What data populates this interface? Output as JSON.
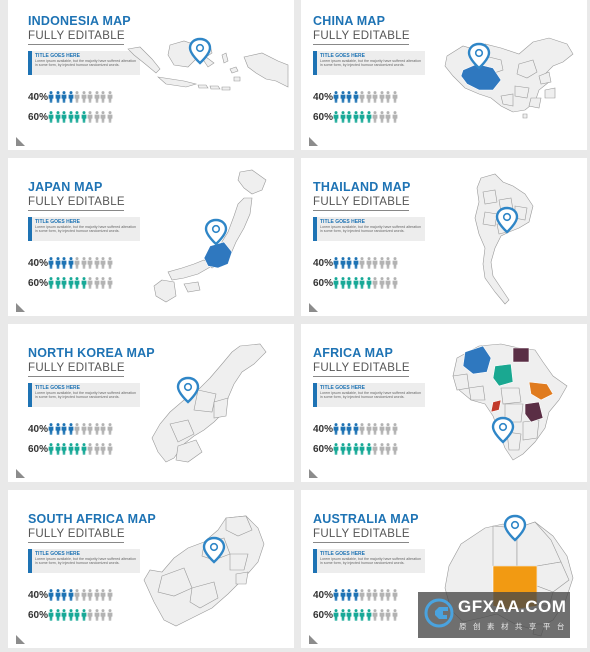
{
  "colors": {
    "title_blue": "#1e73b4",
    "person_blue": "#1e73b4",
    "person_teal": "#18a997",
    "person_grey": "#b3b3b3",
    "map_grey": "#efefef",
    "map_highlight_blue": "#2f78bf",
    "pin_blue": "#2f86c7"
  },
  "slides": [
    {
      "title": "INDONESIA MAP",
      "subtitle": "FULLY EDITABLE",
      "box_title": "TITLE GOES HERE",
      "box_text": "Lorem ipsum available, but the majority have suffered alteration in some form, by injected humour randomized words.",
      "stats": [
        {
          "label": "40%",
          "filled": 4,
          "total": 10,
          "color": "blue"
        },
        {
          "label": "60%",
          "filled": 6,
          "total": 10,
          "color": "teal"
        }
      ],
      "map_icon": "indonesia-map"
    },
    {
      "title": "CHINA MAP",
      "subtitle": "FULLY EDITABLE",
      "box_title": "TITLE GOES HERE",
      "box_text": "Lorem ipsum available, but the majority have suffered alteration in some form, by injected humour randomized words.",
      "stats": [
        {
          "label": "40%",
          "filled": 4,
          "total": 10,
          "color": "blue"
        },
        {
          "label": "60%",
          "filled": 6,
          "total": 10,
          "color": "teal"
        }
      ],
      "map_icon": "china-map"
    },
    {
      "title": "JAPAN MAP",
      "subtitle": "FULLY EDITABLE",
      "box_title": "TITLE GOES HERE",
      "box_text": "Lorem ipsum available, but the majority have suffered alteration in some form, by injected humour randomized words.",
      "stats": [
        {
          "label": "40%",
          "filled": 4,
          "total": 10,
          "color": "blue"
        },
        {
          "label": "60%",
          "filled": 6,
          "total": 10,
          "color": "teal"
        }
      ],
      "map_icon": "japan-map"
    },
    {
      "title": "THAILAND MAP",
      "subtitle": "FULLY EDITABLE",
      "box_title": "TITLE GOES HERE",
      "box_text": "Lorem ipsum available, but the majority have suffered alteration in some form, by injected humour randomized words.",
      "stats": [
        {
          "label": "40%",
          "filled": 4,
          "total": 10,
          "color": "blue"
        },
        {
          "label": "60%",
          "filled": 6,
          "total": 10,
          "color": "teal"
        }
      ],
      "map_icon": "thailand-map"
    },
    {
      "title": "NORTH KOREA MAP",
      "subtitle": "FULLY EDITABLE",
      "box_title": "TITLE GOES HERE",
      "box_text": "Lorem ipsum available, but the majority have suffered alteration in some form, by injected humour randomized words.",
      "stats": [
        {
          "label": "40%",
          "filled": 4,
          "total": 10,
          "color": "blue"
        },
        {
          "label": "60%",
          "filled": 6,
          "total": 10,
          "color": "teal"
        }
      ],
      "map_icon": "north-korea-map"
    },
    {
      "title": "AFRICA MAP",
      "subtitle": "FULLY EDITABLE",
      "box_title": "TITLE GOES HERE",
      "box_text": "Lorem ipsum available, but the majority have suffered alteration in some form, by injected humour randomized words.",
      "stats": [
        {
          "label": "40%",
          "filled": 4,
          "total": 10,
          "color": "blue"
        },
        {
          "label": "60%",
          "filled": 6,
          "total": 10,
          "color": "teal"
        }
      ],
      "map_icon": "africa-map"
    },
    {
      "title": "SOUTH AFRICA MAP",
      "subtitle": "FULLY EDITABLE",
      "box_title": "TITLE GOES HERE",
      "box_text": "Lorem ipsum available, but the majority have suffered alteration in some form, by injected humour randomized words.",
      "stats": [
        {
          "label": "40%",
          "filled": 4,
          "total": 10,
          "color": "blue"
        },
        {
          "label": "60%",
          "filled": 6,
          "total": 10,
          "color": "teal"
        }
      ],
      "map_icon": "south-africa-map"
    },
    {
      "title": "AUSTRALIA MAP",
      "subtitle": "FULLY EDITABLE",
      "box_title": "TITLE GOES HERE",
      "box_text": "Lorem ipsum available, but the majority have suffered alteration in some form, by injected humour randomized words.",
      "stats": [
        {
          "label": "40%",
          "filled": 4,
          "total": 10,
          "color": "blue"
        },
        {
          "label": "60%",
          "filled": 6,
          "total": 10,
          "color": "teal"
        }
      ],
      "map_icon": "australia-map"
    }
  ],
  "watermark": {
    "text": "GFXAA.COM",
    "subtext": "原 创 素 材 共 享 平 台",
    "icon": "gfxaa-logo-icon"
  }
}
